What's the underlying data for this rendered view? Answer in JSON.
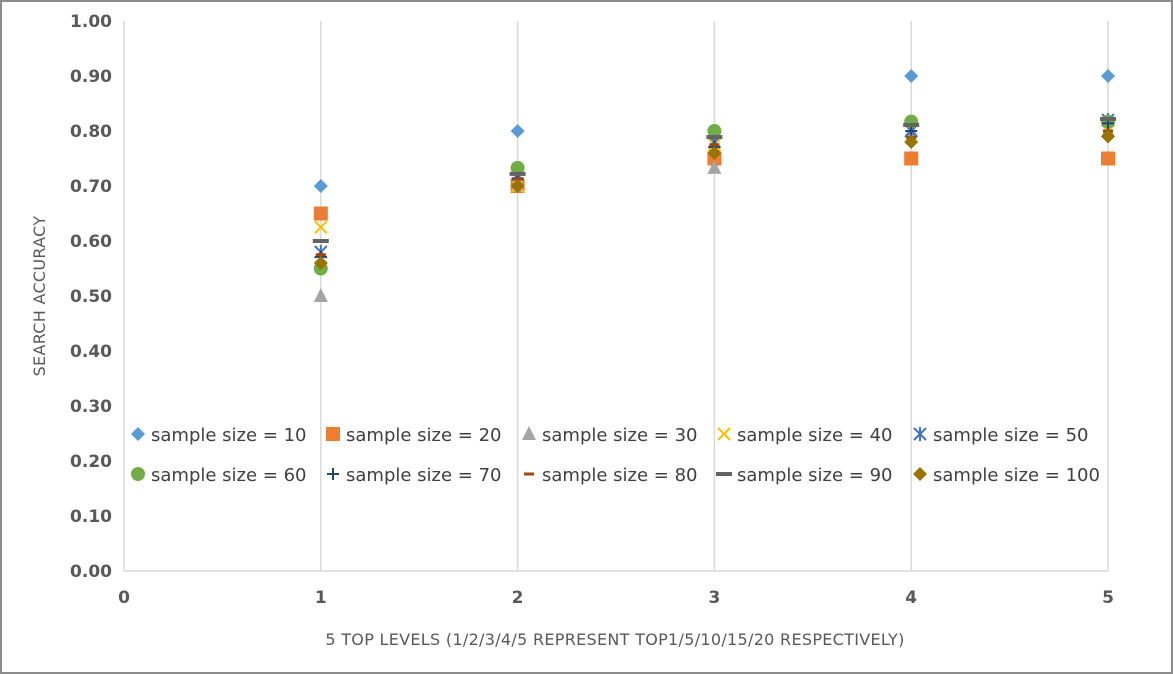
{
  "chart_data": {
    "type": "scatter",
    "title": "",
    "xlabel": "5 TOP LEVELS (1/2/3/4/5 REPRESENT TOP1/5/10/15/20 RESPECTIVELY)",
    "ylabel": "SEARCH ACCURACY",
    "xlim": [
      0,
      5
    ],
    "ylim": [
      0,
      1
    ],
    "x_ticks": [
      0,
      1,
      2,
      3,
      4,
      5
    ],
    "x_tick_labels": [
      "0",
      "1",
      "2",
      "3",
      "4",
      "5"
    ],
    "y_ticks": [
      0,
      0.1,
      0.2,
      0.3,
      0.4,
      0.5,
      0.6,
      0.7,
      0.8,
      0.9,
      1.0
    ],
    "y_tick_labels": [
      "0.00",
      "0.10",
      "0.20",
      "0.30",
      "0.40",
      "0.50",
      "0.60",
      "0.70",
      "0.80",
      "0.90",
      "1.00"
    ],
    "grid": {
      "vertical": true,
      "horizontal": false
    },
    "legend_position": "center-left, inside plot area",
    "x": [
      1,
      2,
      3,
      4,
      5
    ],
    "series": [
      {
        "name": "sample size = 10",
        "marker": "diamond",
        "color": "#5b9bd5",
        "values": [
          0.7,
          0.8,
          0.8,
          0.9,
          0.9
        ]
      },
      {
        "name": "sample size = 20",
        "marker": "square",
        "color": "#ed7d31",
        "values": [
          0.65,
          0.7,
          0.75,
          0.75,
          0.75
        ]
      },
      {
        "name": "sample size = 30",
        "marker": "triangle",
        "color": "#a5a5a5",
        "values": [
          0.5,
          0.7,
          0.733,
          0.8,
          0.8
        ]
      },
      {
        "name": "sample size = 40",
        "marker": "x",
        "color": "#ffc000",
        "values": [
          0.625,
          0.7,
          0.775,
          0.8,
          0.8
        ]
      },
      {
        "name": "sample size = 50",
        "marker": "star",
        "color": "#4472c4",
        "values": [
          0.58,
          0.72,
          0.78,
          0.8,
          0.82
        ]
      },
      {
        "name": "sample size = 60",
        "marker": "circle",
        "color": "#70ad47",
        "values": [
          0.55,
          0.733,
          0.8,
          0.817,
          0.817
        ]
      },
      {
        "name": "sample size = 70",
        "marker": "plus",
        "color": "#264478",
        "values": [
          0.571,
          0.714,
          0.771,
          0.8,
          0.814
        ]
      },
      {
        "name": "sample size = 80",
        "marker": "dash",
        "color": "#9e480e",
        "values": [
          0.575,
          0.713,
          0.775,
          0.788,
          0.8
        ]
      },
      {
        "name": "sample size = 90",
        "marker": "bar",
        "color": "#636363",
        "values": [
          0.6,
          0.722,
          0.789,
          0.811,
          0.822
        ]
      },
      {
        "name": "sample size = 100",
        "marker": "diamond",
        "color": "#997300",
        "values": [
          0.56,
          0.7,
          0.76,
          0.78,
          0.79
        ]
      }
    ]
  }
}
